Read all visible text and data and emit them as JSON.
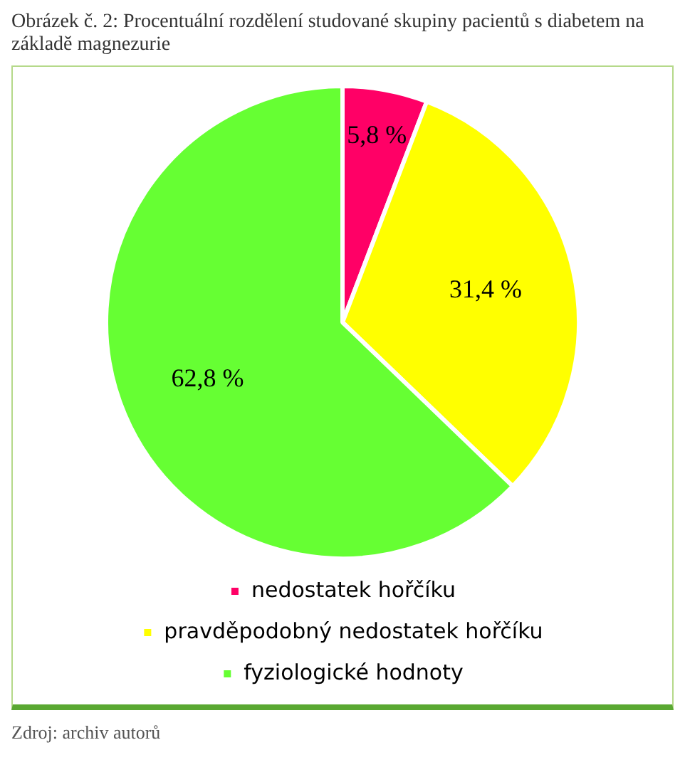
{
  "chart_data": {
    "type": "pie",
    "title": "Obrázek č. 2: Procentuální rozdělení studované skupiny pacientů s diabetem na základě magnezurie",
    "categories": [
      "nedostatek hořčíku",
      "pravděpodobný nedostatek hořčíku",
      "fyziologické hodnoty"
    ],
    "values": [
      5.8,
      31.4,
      62.8
    ],
    "colors": [
      "#ff0066",
      "#ffff00",
      "#66ff33"
    ],
    "value_labels": [
      "5,8 %",
      "31,4 %",
      "62,8 %"
    ],
    "legend": "bottom",
    "annotations": [
      "Zdroj: archiv autorů"
    ]
  }
}
